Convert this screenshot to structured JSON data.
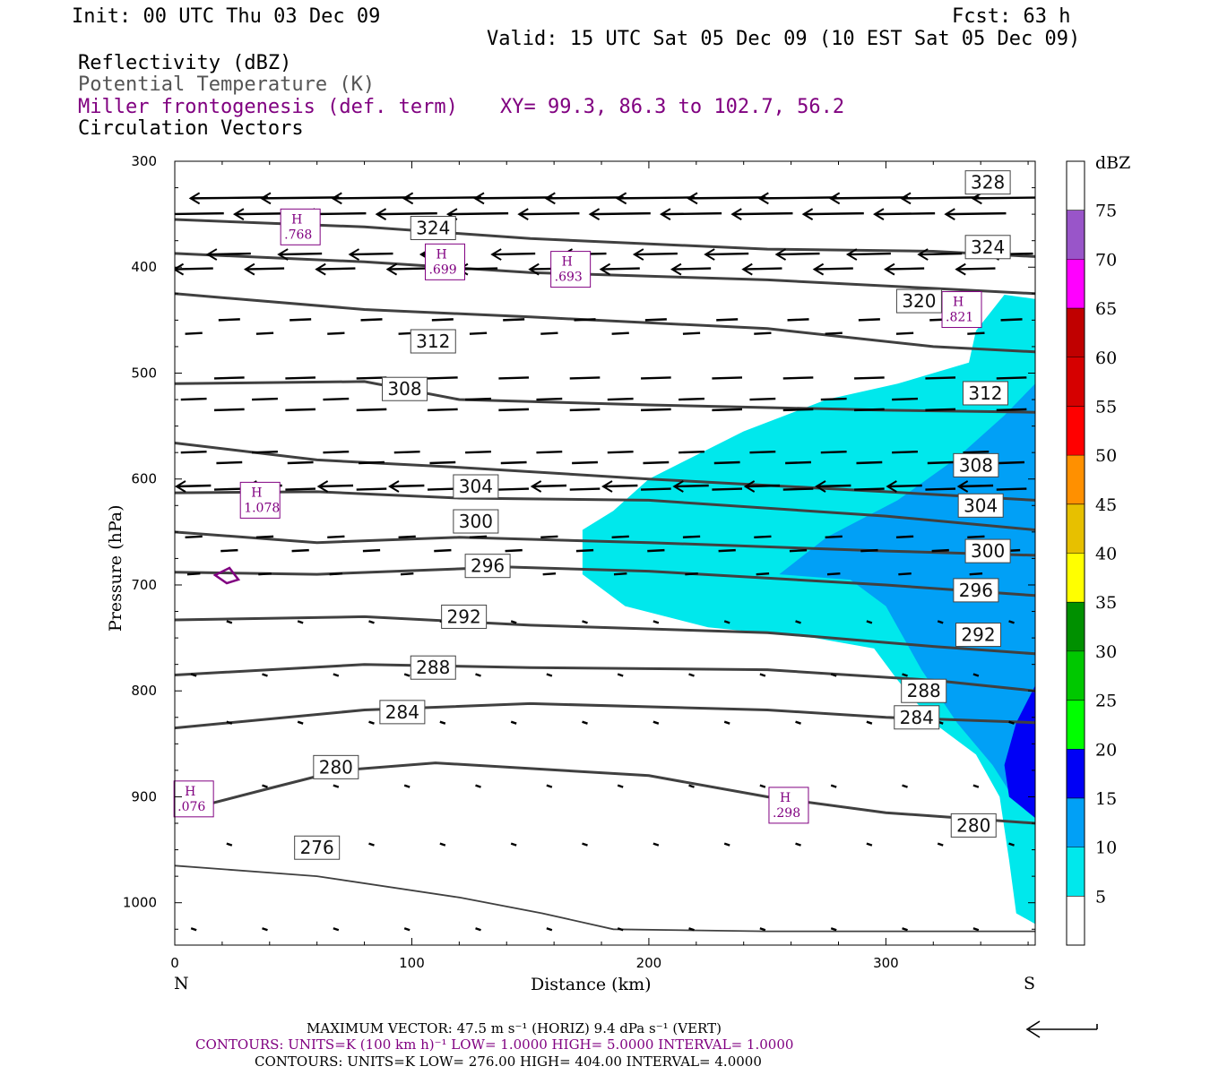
{
  "header": {
    "init": "Init: 00 UTC Thu 03 Dec 09",
    "fcst": "Fcst:   63 h",
    "valid": "Valid: 15 UTC Sat 05 Dec 09 (10 EST Sat 05 Dec 09)",
    "fields": [
      {
        "text": "Reflectivity (dBZ)",
        "color": "#000000"
      },
      {
        "text": "Potential Temperature (K)",
        "color": "#555555"
      },
      {
        "text": "Miller frontogenesis (def. term)",
        "color": "#800080"
      },
      {
        "text": "Circulation Vectors",
        "color": "#000000"
      }
    ],
    "xy": "XY=  99.3, 86.3 to 102.7, 56.2"
  },
  "chart_data": {
    "type": "cross-section",
    "xlabel": "Distance (km)",
    "ylabel": "Pressure (hPa)",
    "x_range": [
      0,
      363
    ],
    "y_range": [
      1040,
      300
    ],
    "x_ticks": [
      0,
      100,
      200,
      300
    ],
    "y_ticks": [
      300,
      400,
      500,
      600,
      700,
      800,
      900,
      1000
    ],
    "left_end_label": "N",
    "right_end_label": "S",
    "colorbar": {
      "unit": "dBZ",
      "levels": [
        5,
        10,
        15,
        20,
        25,
        30,
        35,
        40,
        45,
        50,
        55,
        60,
        65,
        70,
        75
      ],
      "colors": [
        "#ffffff",
        "#00e8ec",
        "#01a0f6",
        "#0000f6",
        "#00ff00",
        "#00c800",
        "#009000",
        "#ffff00",
        "#e7c000",
        "#ff9000",
        "#ff0000",
        "#d60000",
        "#c00000",
        "#ff00ff",
        "#9955c9"
      ]
    },
    "reflectivity_regions": [
      {
        "dbz_min": 5,
        "outline": [
          [
            363,
            430
          ],
          [
            350,
            426
          ],
          [
            338,
            460
          ],
          [
            335,
            490
          ],
          [
            305,
            510
          ],
          [
            275,
            525
          ],
          [
            240,
            555
          ],
          [
            200,
            600
          ],
          [
            185,
            630
          ],
          [
            172,
            648
          ],
          [
            172,
            690
          ],
          [
            190,
            720
          ],
          [
            225,
            740
          ],
          [
            270,
            750
          ],
          [
            295,
            760
          ],
          [
            305,
            790
          ],
          [
            320,
            830
          ],
          [
            338,
            860
          ],
          [
            348,
            900
          ],
          [
            352,
            960
          ],
          [
            355,
            1010
          ],
          [
            363,
            1020
          ]
        ]
      },
      {
        "dbz_min": 10,
        "outline": [
          [
            363,
            510
          ],
          [
            350,
            540
          ],
          [
            330,
            580
          ],
          [
            305,
            620
          ],
          [
            275,
            655
          ],
          [
            255,
            690
          ],
          [
            285,
            695
          ],
          [
            300,
            720
          ],
          [
            315,
            780
          ],
          [
            330,
            830
          ],
          [
            345,
            870
          ],
          [
            355,
            905
          ],
          [
            363,
            905
          ]
        ]
      },
      {
        "dbz_min": 15,
        "outline": [
          [
            363,
            795
          ],
          [
            355,
            830
          ],
          [
            350,
            870
          ],
          [
            352,
            900
          ],
          [
            363,
            920
          ]
        ]
      }
    ],
    "theta_contours": [
      {
        "value": 276,
        "points": [
          [
            0,
            965
          ],
          [
            60,
            975
          ],
          [
            120,
            995
          ],
          [
            155,
            1010
          ],
          [
            185,
            1025
          ],
          [
            250,
            1027
          ],
          [
            363,
            1027
          ]
        ],
        "labels": [
          [
            60,
            948
          ]
        ]
      },
      {
        "value": 280,
        "points": [
          [
            0,
            915
          ],
          [
            40,
            892
          ],
          [
            70,
            875
          ],
          [
            110,
            868
          ],
          [
            200,
            880
          ],
          [
            250,
            900
          ],
          [
            300,
            915
          ],
          [
            363,
            925
          ]
        ],
        "labels": [
          [
            68,
            872
          ],
          [
            337,
            927
          ]
        ]
      },
      {
        "value": 284,
        "points": [
          [
            0,
            835
          ],
          [
            80,
            818
          ],
          [
            150,
            812
          ],
          [
            250,
            818
          ],
          [
            300,
            825
          ],
          [
            363,
            830
          ]
        ],
        "labels": [
          [
            96,
            820
          ],
          [
            313,
            825
          ]
        ]
      },
      {
        "value": 288,
        "points": [
          [
            0,
            785
          ],
          [
            80,
            775
          ],
          [
            150,
            778
          ],
          [
            250,
            780
          ],
          [
            320,
            790
          ],
          [
            363,
            800
          ]
        ],
        "labels": [
          [
            109,
            778
          ],
          [
            316,
            800
          ]
        ]
      },
      {
        "value": 292,
        "points": [
          [
            0,
            733
          ],
          [
            80,
            730
          ],
          [
            150,
            738
          ],
          [
            250,
            745
          ],
          [
            320,
            758
          ],
          [
            363,
            765
          ]
        ],
        "labels": [
          [
            122,
            730
          ],
          [
            339,
            747
          ]
        ]
      },
      {
        "value": 296,
        "points": [
          [
            0,
            688
          ],
          [
            60,
            690
          ],
          [
            140,
            683
          ],
          [
            200,
            687
          ],
          [
            300,
            700
          ],
          [
            363,
            710
          ]
        ],
        "labels": [
          [
            132,
            682
          ],
          [
            338,
            705
          ]
        ]
      },
      {
        "value": 300,
        "points": [
          [
            0,
            650
          ],
          [
            60,
            660
          ],
          [
            120,
            655
          ],
          [
            200,
            660
          ],
          [
            300,
            668
          ],
          [
            363,
            672
          ]
        ],
        "labels": [
          [
            127,
            640
          ],
          [
            343,
            668
          ]
        ]
      },
      {
        "value": 304,
        "points": [
          [
            0,
            613
          ],
          [
            60,
            612
          ],
          [
            120,
            618
          ],
          [
            200,
            620
          ],
          [
            300,
            635
          ],
          [
            363,
            648
          ]
        ],
        "labels": [
          [
            127,
            607
          ],
          [
            340,
            625
          ]
        ]
      },
      {
        "value": 308,
        "points": [
          [
            0,
            566
          ],
          [
            60,
            582
          ],
          [
            120,
            589
          ],
          [
            200,
            600
          ],
          [
            300,
            612
          ],
          [
            363,
            620
          ]
        ],
        "labels": [
          [
            97,
            515
          ],
          [
            338,
            587
          ]
        ]
      },
      {
        "value": 312,
        "points": [
          [
            0,
            510
          ],
          [
            80,
            508
          ],
          [
            120,
            525
          ],
          [
            200,
            530
          ],
          [
            300,
            535
          ],
          [
            363,
            537
          ]
        ],
        "labels": [
          [
            109,
            470
          ],
          [
            342,
            519
          ]
        ]
      },
      {
        "value": 320,
        "points": [
          [
            0,
            425
          ],
          [
            80,
            440
          ],
          [
            150,
            447
          ],
          [
            250,
            458
          ],
          [
            320,
            475
          ],
          [
            363,
            480
          ]
        ],
        "labels": [
          [
            314,
            432
          ]
        ]
      },
      {
        "value": 324,
        "points": [
          [
            0,
            387
          ],
          [
            80,
            395
          ],
          [
            150,
            405
          ],
          [
            250,
            412
          ],
          [
            320,
            420
          ],
          [
            363,
            425
          ]
        ],
        "labels": [
          [
            109,
            363
          ],
          [
            343,
            381
          ]
        ]
      },
      {
        "value": 328,
        "points": [
          [
            0,
            355
          ],
          [
            80,
            362
          ],
          [
            150,
            373
          ],
          [
            250,
            383
          ],
          [
            320,
            385
          ],
          [
            363,
            390
          ]
        ],
        "labels": [
          [
            343,
            320
          ]
        ]
      }
    ],
    "frontogenesis_maxima": [
      {
        "label": "H",
        "value": ".768",
        "pos": [
          53,
          362
        ]
      },
      {
        "label": "H",
        "value": ".699",
        "pos": [
          114,
          395
        ]
      },
      {
        "label": "H",
        "value": ".693",
        "pos": [
          167,
          402
        ]
      },
      {
        "label": "H",
        "value": ".821",
        "pos": [
          332,
          440
        ]
      },
      {
        "label": "H",
        "value": "1.078",
        "pos": [
          36,
          620
        ]
      },
      {
        "label": "H",
        "value": ".076",
        "pos": [
          8,
          902
        ]
      },
      {
        "label": "H",
        "value": ".298",
        "pos": [
          259,
          908
        ]
      }
    ],
    "vector_rows": [
      {
        "p": 335,
        "len": 18
      },
      {
        "p": 350,
        "len": 14
      },
      {
        "p": 388,
        "len": 10
      },
      {
        "p": 402,
        "len": 9
      },
      {
        "p": 450,
        "len": 5
      },
      {
        "p": 463,
        "len": 4
      },
      {
        "p": 505,
        "len": 7
      },
      {
        "p": 525,
        "len": 6
      },
      {
        "p": 535,
        "len": 7
      },
      {
        "p": 575,
        "len": 6
      },
      {
        "p": 585,
        "len": 6
      },
      {
        "p": 607,
        "len": 8
      },
      {
        "p": 610,
        "len": 7
      },
      {
        "p": 655,
        "len": 4
      },
      {
        "p": 668,
        "len": 4
      },
      {
        "p": 690,
        "len": 3
      },
      {
        "p": 735,
        "len": 1
      },
      {
        "p": 785,
        "len": 1
      },
      {
        "p": 830,
        "len": 1
      },
      {
        "p": 890,
        "len": 1
      },
      {
        "p": 945,
        "len": 1
      },
      {
        "p": 1025,
        "len": 1
      }
    ],
    "footer": {
      "max_vector": "MAXIMUM VECTOR:  47.5 m s⁻¹ (HORIZ)          9.4 dPa s⁻¹ (VERT)",
      "contours_fg": "CONTOURS:  UNITS=K (100 km h)⁻¹  LOW=   1.0000        HIGH=  5.0000        INTERVAL=    1.0000",
      "contours_theta": "CONTOURS:  UNITS=K  LOW=  276.00        HIGH=  404.00        INTERVAL=    4.0000"
    }
  }
}
